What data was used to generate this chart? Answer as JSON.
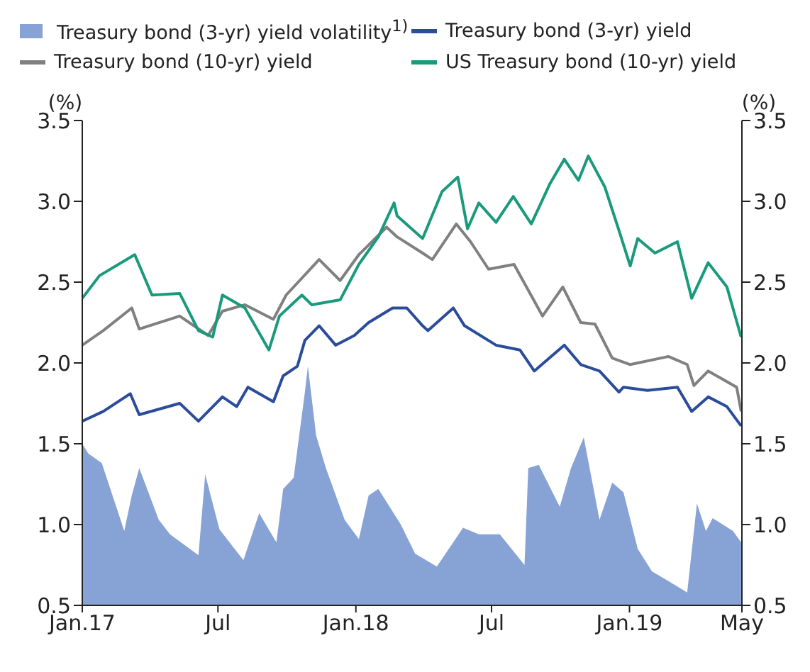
{
  "chart_data": {
    "type": "line",
    "ylabel": "(%)",
    "y2label": "(%)",
    "legend": "top",
    "marker": "none",
    "line_style": "solid",
    "xlim": [
      "2017-01-01",
      "2019-05-31"
    ],
    "xticks": [
      {
        "value": "2017-01-01",
        "label": "Jan.17"
      },
      {
        "value": "2017-07-01",
        "label": "Jul"
      },
      {
        "value": "2018-01-01",
        "label": "Jan.18"
      },
      {
        "value": "2018-07-01",
        "label": "Jul"
      },
      {
        "value": "2019-01-01",
        "label": "Jan.19"
      },
      {
        "value": "2019-05-31",
        "label": "May"
      }
    ],
    "ylim": [
      0.5,
      3.5
    ],
    "yticks": [
      0.5,
      {
        "value": 1,
        "label": "1.0"
      },
      1.5,
      {
        "value": 2,
        "label": "2.0"
      },
      2.5,
      {
        "value": 3,
        "label": "3.0"
      },
      3.5
    ],
    "y2lim": [
      0.5,
      3.5
    ],
    "y2ticks": [
      0.5,
      {
        "value": 1,
        "label": "1.0"
      },
      1.5,
      {
        "value": 2,
        "label": "2.0"
      },
      2.5,
      {
        "value": 3,
        "label": "3.0"
      },
      3.5
    ],
    "series": [
      {
        "name": "Treasury bond (3-yr) yield volatility$^{1)}$",
        "type": "area",
        "color": "#87a3d6",
        "x": [
          "2017-01-01",
          "2017-01-09",
          "2017-01-27",
          "2017-02-26",
          "2017-03-08",
          "2017-03-18",
          "2017-04-13",
          "2017-04-28",
          "2017-06-05",
          "2017-06-14",
          "2017-07-03",
          "2017-08-04",
          "2017-08-25",
          "2017-09-17",
          "2017-09-26",
          "2017-10-10",
          "2017-10-25",
          "2017-10-29",
          "2017-11-09",
          "2017-11-22",
          "2017-12-17",
          "2018-01-05",
          "2018-01-18",
          "2018-01-31",
          "2018-03-02",
          "2018-03-21",
          "2018-04-19",
          "2018-05-24",
          "2018-06-14",
          "2018-07-12",
          "2018-08-14",
          "2018-08-19",
          "2018-09-02",
          "2018-09-30",
          "2018-10-15",
          "2018-11-01",
          "2018-11-22",
          "2018-12-09",
          "2018-12-24",
          "2019-01-12",
          "2019-01-31",
          "2019-02-22",
          "2019-03-19",
          "2019-04-01",
          "2019-04-13",
          "2019-04-22",
          "2019-05-19",
          "2019-05-30"
        ],
        "values": [
          1.5,
          1.44,
          1.38,
          0.96,
          1.18,
          1.35,
          1.03,
          0.94,
          0.81,
          1.31,
          0.97,
          0.78,
          1.07,
          0.89,
          1.22,
          1.29,
          1.82,
          1.98,
          1.55,
          1.35,
          1.03,
          0.91,
          1.18,
          1.22,
          1.0,
          0.82,
          0.74,
          0.98,
          0.94,
          0.94,
          0.75,
          1.35,
          1.37,
          1.11,
          1.35,
          1.54,
          1.03,
          1.26,
          1.2,
          0.85,
          0.71,
          0.65,
          0.58,
          1.13,
          0.96,
          1.04,
          0.96,
          0.89
        ]
      },
      {
        "name": "Treasury bond (3-yr) yield",
        "color": "#2b4c9b",
        "x": [
          "2017-01-01",
          "2017-01-29",
          "2017-03-06",
          "2017-03-18",
          "2017-05-11",
          "2017-06-05",
          "2017-07-07",
          "2017-07-26",
          "2017-08-10",
          "2017-09-13",
          "2017-09-26",
          "2017-10-15",
          "2017-10-25",
          "2017-11-13",
          "2017-12-05",
          "2017-12-30",
          "2018-01-18",
          "2018-02-19",
          "2018-03-10",
          "2018-03-31",
          "2018-04-07",
          "2018-05-11",
          "2018-05-26",
          "2018-07-07",
          "2018-08-08",
          "2018-08-27",
          "2018-10-06",
          "2018-10-28",
          "2018-11-22",
          "2018-12-18",
          "2018-12-24",
          "2019-01-25",
          "2019-03-06",
          "2019-03-25",
          "2019-04-16",
          "2019-05-11",
          "2019-05-30"
        ],
        "values": [
          1.64,
          1.7,
          1.81,
          1.68,
          1.75,
          1.64,
          1.79,
          1.73,
          1.85,
          1.76,
          1.92,
          1.98,
          2.14,
          2.23,
          2.11,
          2.17,
          2.25,
          2.34,
          2.34,
          2.23,
          2.2,
          2.34,
          2.23,
          2.11,
          2.08,
          1.95,
          2.11,
          1.99,
          1.95,
          1.82,
          1.85,
          1.83,
          1.85,
          1.7,
          1.79,
          1.73,
          1.61
        ]
      },
      {
        "name": "Treasury bond (10-yr) yield",
        "color": "#808080",
        "x": [
          "2017-01-01",
          "2017-01-29",
          "2017-03-08",
          "2017-03-18",
          "2017-05-11",
          "2017-06-18",
          "2017-07-07",
          "2017-08-06",
          "2017-09-13",
          "2017-09-30",
          "2017-11-13",
          "2017-12-11",
          "2018-01-05",
          "2018-02-11",
          "2018-02-25",
          "2018-03-31",
          "2018-04-13",
          "2018-05-15",
          "2018-06-03",
          "2018-06-27",
          "2018-07-31",
          "2018-09-07",
          "2018-10-04",
          "2018-10-28",
          "2018-11-16",
          "2018-12-09",
          "2019-01-02",
          "2019-02-22",
          "2019-03-19",
          "2019-03-28",
          "2019-04-16",
          "2019-05-24",
          "2019-05-30"
        ],
        "values": [
          2.11,
          2.2,
          2.34,
          2.21,
          2.29,
          2.17,
          2.32,
          2.36,
          2.27,
          2.42,
          2.64,
          2.51,
          2.67,
          2.84,
          2.78,
          2.68,
          2.64,
          2.86,
          2.75,
          2.58,
          2.61,
          2.29,
          2.47,
          2.25,
          2.24,
          2.03,
          1.99,
          2.04,
          1.99,
          1.86,
          1.95,
          1.85,
          1.7
        ]
      },
      {
        "name": "US Treasury bond (10-yr) yield",
        "color": "#1a9a7c",
        "x": [
          "2017-01-01",
          "2017-01-24",
          "2017-03-12",
          "2017-04-04",
          "2017-05-11",
          "2017-06-05",
          "2017-06-24",
          "2017-07-07",
          "2017-08-06",
          "2017-09-07",
          "2017-09-21",
          "2017-10-21",
          "2017-11-03",
          "2017-12-11",
          "2018-01-05",
          "2018-01-31",
          "2018-02-21",
          "2018-02-25",
          "2018-03-31",
          "2018-04-26",
          "2018-05-17",
          "2018-05-30",
          "2018-06-14",
          "2018-07-07",
          "2018-07-30",
          "2018-08-23",
          "2018-09-17",
          "2018-10-06",
          "2018-10-25",
          "2018-11-07",
          "2018-11-29",
          "2018-12-18",
          "2019-01-02",
          "2019-01-12",
          "2019-02-04",
          "2019-03-06",
          "2019-03-25",
          "2019-04-16",
          "2019-05-11",
          "2019-05-30"
        ],
        "values": [
          2.4,
          2.54,
          2.67,
          2.42,
          2.43,
          2.2,
          2.16,
          2.42,
          2.34,
          2.08,
          2.29,
          2.42,
          2.36,
          2.39,
          2.61,
          2.78,
          2.99,
          2.91,
          2.77,
          3.06,
          3.15,
          2.83,
          2.99,
          2.87,
          3.03,
          2.86,
          3.11,
          3.26,
          3.13,
          3.28,
          3.09,
          2.82,
          2.6,
          2.77,
          2.68,
          2.75,
          2.4,
          2.62,
          2.47,
          2.16
        ]
      }
    ]
  }
}
